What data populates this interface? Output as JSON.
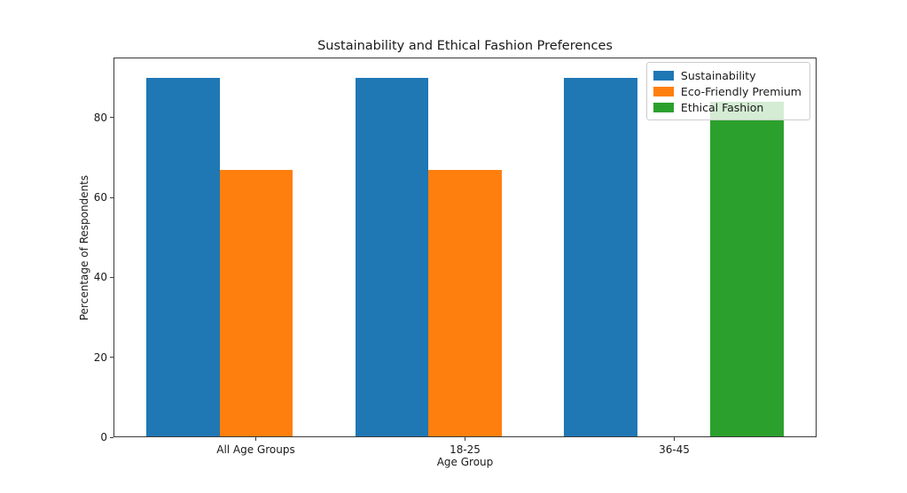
{
  "figure": {
    "background": "#ffffff",
    "text_color": "#1a1a1a",
    "spine_color": "#3a3a3a",
    "legend_border_color": "#cccccc"
  },
  "chart_data": {
    "type": "bar",
    "title": "Sustainability and Ethical Fashion Preferences",
    "xlabel": "Age Group",
    "ylabel": "Percentage of Respondents",
    "categories": [
      "All Age Groups",
      "18-25",
      "36-45"
    ],
    "series": [
      {
        "name": "Sustainability",
        "color": "#1f77b4",
        "values": [
          90,
          90,
          90
        ]
      },
      {
        "name": "Eco-Friendly Premium",
        "color": "#ff7f0e",
        "values": [
          67,
          67,
          0
        ]
      },
      {
        "name": "Ethical Fashion",
        "color": "#2ca02c",
        "values": [
          0,
          0,
          84
        ]
      }
    ],
    "bar_width": 0.35,
    "xlim": [
      -0.68,
      2.68
    ],
    "ylim": [
      0,
      95
    ],
    "yticks": [
      0,
      20,
      40,
      60,
      80
    ],
    "grid": false,
    "legend": {
      "position": "upper right",
      "entries": [
        "Sustainability",
        "Eco-Friendly Premium",
        "Ethical Fashion"
      ]
    }
  }
}
